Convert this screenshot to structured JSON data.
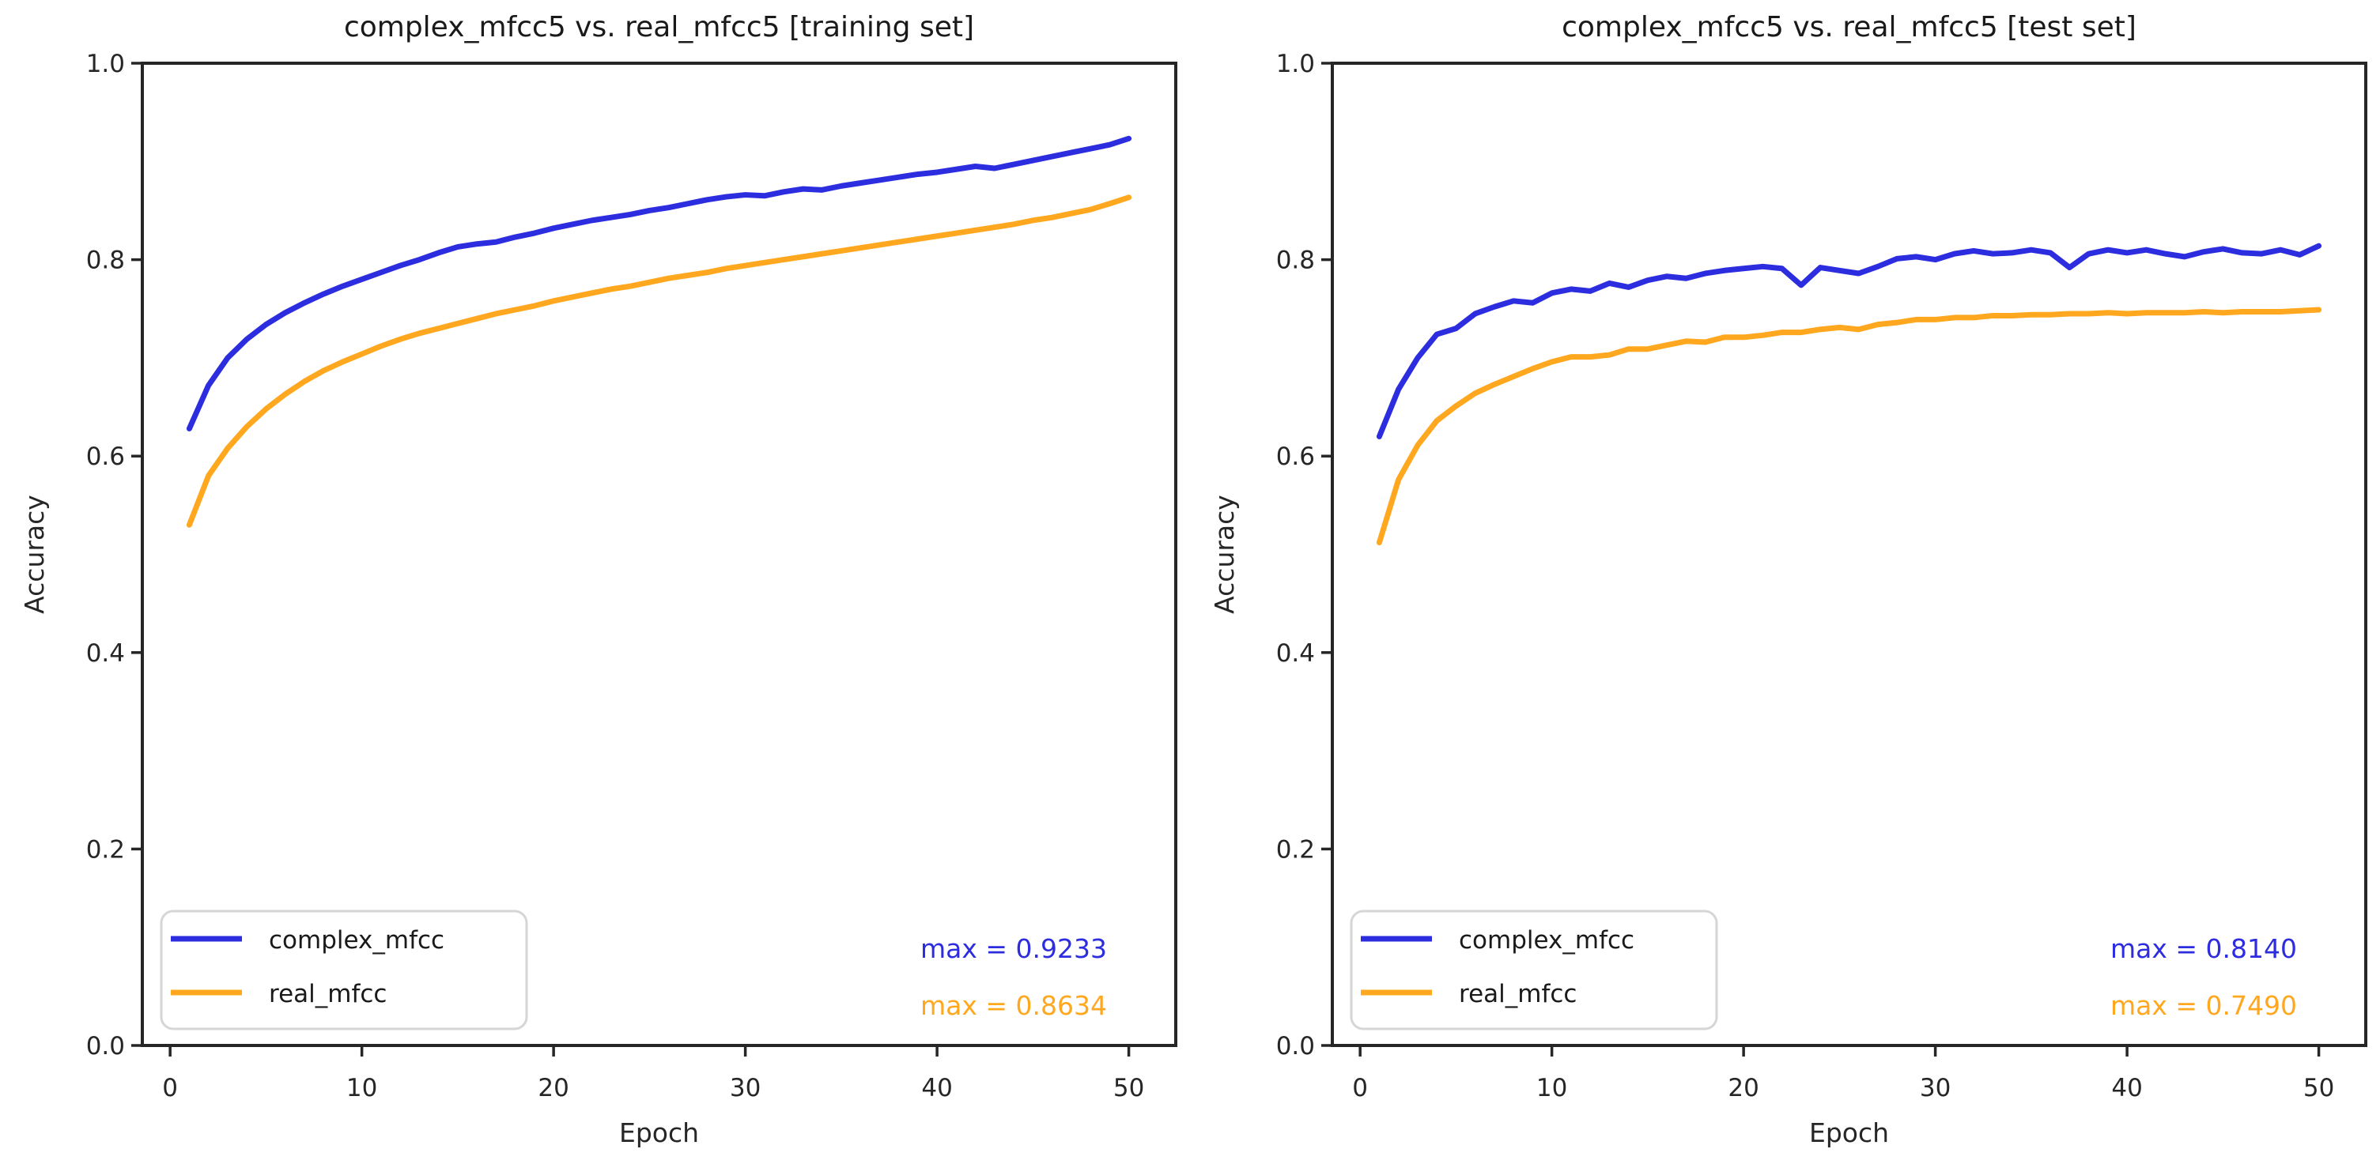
{
  "figure": {
    "background": "#ffffff"
  },
  "colors": {
    "complex_mfcc": "#2d2de0",
    "real_mfcc": "#ffa81f",
    "axis": "#262626",
    "tick_label": "#262626",
    "title": "#1a1a1a",
    "legend_border": "#d6d6d6",
    "legend_background": "#ffffff"
  },
  "chart_data": [
    {
      "type": "line",
      "title": "complex_mfcc5 vs. real_mfcc5 [training set]",
      "xlabel": "Epoch",
      "ylabel": "Accuracy",
      "xlim": [
        -1.45,
        52.45
      ],
      "ylim": [
        0.0,
        1.0
      ],
      "grid": false,
      "legend_position": "lower left",
      "x_ticks": [
        0,
        10,
        20,
        30,
        40,
        50
      ],
      "x_tick_labels": [
        "0",
        "10",
        "20",
        "30",
        "40",
        "50"
      ],
      "y_ticks": [
        0.0,
        0.2,
        0.4,
        0.6,
        0.8,
        1.0
      ],
      "y_tick_labels": [
        "0.0",
        "0.2",
        "0.4",
        "0.6",
        "0.8",
        "1.0"
      ],
      "x": [
        1,
        2,
        3,
        4,
        5,
        6,
        7,
        8,
        9,
        10,
        11,
        12,
        13,
        14,
        15,
        16,
        17,
        18,
        19,
        20,
        21,
        22,
        23,
        24,
        25,
        26,
        27,
        28,
        29,
        30,
        31,
        32,
        33,
        34,
        35,
        36,
        37,
        38,
        39,
        40,
        41,
        42,
        43,
        44,
        45,
        46,
        47,
        48,
        49,
        50
      ],
      "series": [
        {
          "name": "complex_mfcc",
          "color": "#2d2de0",
          "max": 0.9233,
          "max_label": "max = 0.9233",
          "values": [
            0.628,
            0.672,
            0.7,
            0.719,
            0.734,
            0.746,
            0.756,
            0.765,
            0.773,
            0.78,
            0.787,
            0.794,
            0.8,
            0.807,
            0.813,
            0.816,
            0.818,
            0.823,
            0.827,
            0.832,
            0.836,
            0.84,
            0.843,
            0.846,
            0.85,
            0.853,
            0.857,
            0.861,
            0.864,
            0.866,
            0.865,
            0.869,
            0.872,
            0.871,
            0.875,
            0.878,
            0.881,
            0.884,
            0.887,
            0.889,
            0.892,
            0.895,
            0.893,
            0.897,
            0.901,
            0.905,
            0.909,
            0.913,
            0.917,
            0.9233
          ]
        },
        {
          "name": "real_mfcc",
          "color": "#ffa81f",
          "max": 0.8634,
          "max_label": "max = 0.8634",
          "values": [
            0.53,
            0.58,
            0.608,
            0.63,
            0.648,
            0.663,
            0.676,
            0.687,
            0.696,
            0.704,
            0.712,
            0.719,
            0.725,
            0.73,
            0.735,
            0.74,
            0.745,
            0.749,
            0.753,
            0.758,
            0.762,
            0.766,
            0.77,
            0.773,
            0.777,
            0.781,
            0.784,
            0.787,
            0.791,
            0.794,
            0.797,
            0.8,
            0.803,
            0.806,
            0.809,
            0.812,
            0.815,
            0.818,
            0.821,
            0.824,
            0.827,
            0.83,
            0.833,
            0.836,
            0.84,
            0.843,
            0.847,
            0.851,
            0.857,
            0.8634
          ]
        }
      ]
    },
    {
      "type": "line",
      "title": "complex_mfcc5 vs. real_mfcc5 [test set]",
      "xlabel": "Epoch",
      "ylabel": "Accuracy",
      "xlim": [
        -1.45,
        52.45
      ],
      "ylim": [
        0.0,
        1.0
      ],
      "grid": false,
      "legend_position": "lower left",
      "x_ticks": [
        0,
        10,
        20,
        30,
        40,
        50
      ],
      "x_tick_labels": [
        "0",
        "10",
        "20",
        "30",
        "40",
        "50"
      ],
      "y_ticks": [
        0.0,
        0.2,
        0.4,
        0.6,
        0.8,
        1.0
      ],
      "y_tick_labels": [
        "0.0",
        "0.2",
        "0.4",
        "0.6",
        "0.8",
        "1.0"
      ],
      "x": [
        1,
        2,
        3,
        4,
        5,
        6,
        7,
        8,
        9,
        10,
        11,
        12,
        13,
        14,
        15,
        16,
        17,
        18,
        19,
        20,
        21,
        22,
        23,
        24,
        25,
        26,
        27,
        28,
        29,
        30,
        31,
        32,
        33,
        34,
        35,
        36,
        37,
        38,
        39,
        40,
        41,
        42,
        43,
        44,
        45,
        46,
        47,
        48,
        49,
        50
      ],
      "series": [
        {
          "name": "complex_mfcc",
          "color": "#2d2de0",
          "max": 0.814,
          "max_label": "max = 0.8140",
          "values": [
            0.62,
            0.668,
            0.7,
            0.724,
            0.73,
            0.745,
            0.752,
            0.758,
            0.756,
            0.766,
            0.77,
            0.768,
            0.776,
            0.772,
            0.779,
            0.783,
            0.781,
            0.786,
            0.789,
            0.791,
            0.793,
            0.791,
            0.774,
            0.792,
            0.789,
            0.786,
            0.793,
            0.801,
            0.803,
            0.8,
            0.806,
            0.809,
            0.806,
            0.807,
            0.81,
            0.807,
            0.792,
            0.806,
            0.81,
            0.807,
            0.81,
            0.806,
            0.803,
            0.808,
            0.811,
            0.807,
            0.806,
            0.81,
            0.805,
            0.814
          ]
        },
        {
          "name": "real_mfcc",
          "color": "#ffa81f",
          "max": 0.749,
          "max_label": "max = 0.7490",
          "values": [
            0.512,
            0.576,
            0.611,
            0.636,
            0.651,
            0.664,
            0.673,
            0.681,
            0.689,
            0.696,
            0.701,
            0.701,
            0.703,
            0.709,
            0.709,
            0.713,
            0.717,
            0.716,
            0.721,
            0.721,
            0.723,
            0.726,
            0.726,
            0.729,
            0.731,
            0.729,
            0.734,
            0.736,
            0.739,
            0.739,
            0.741,
            0.741,
            0.743,
            0.743,
            0.744,
            0.744,
            0.745,
            0.745,
            0.746,
            0.745,
            0.746,
            0.746,
            0.746,
            0.747,
            0.746,
            0.747,
            0.747,
            0.747,
            0.748,
            0.749
          ]
        }
      ]
    }
  ]
}
